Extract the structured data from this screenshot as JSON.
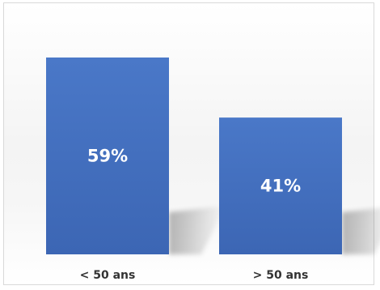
{
  "chart_data": {
    "type": "bar",
    "categories": [
      "< 50 ans",
      "> 50 ans"
    ],
    "values": [
      59,
      41
    ],
    "data_labels": [
      "59%",
      "41%"
    ],
    "ylim": [
      0,
      70
    ],
    "grid": false,
    "legend": "none",
    "bar_color": "#4472c4"
  }
}
